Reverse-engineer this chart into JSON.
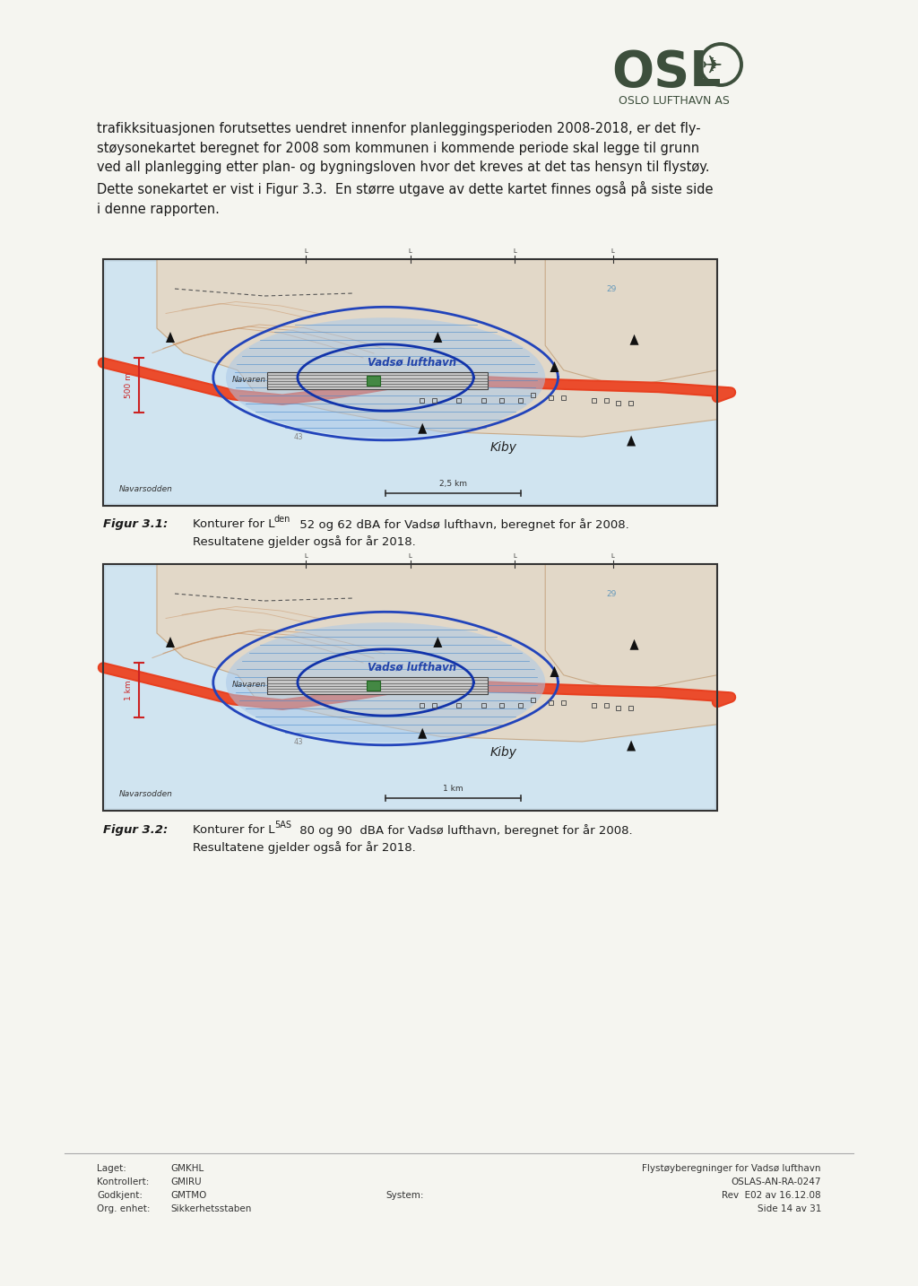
{
  "page_bg": "#f5f5f0",
  "logo_color": "#3d4f3c",
  "main_text_paragraph": "trafikksituasjonen forutsettes uendret innenfor planleggingsperioden 2008-2018, er det fly-\nstøysonekartet beregnet for 2008 som kommunen i kommende periode skal legge til grunn\nved all planlegging etter plan- og bygningsloven hvor det kreves at det tas hensyn til flystøy.\nDette sonekartet er vist i Figur 3.3.  En større utgave av dette kartet finnes også på siste side\ni denne rapporten.",
  "fig1_caption_bold": "Figur 3.1:",
  "fig1_caption_text": "    Konturer for L",
  "fig1_sub": "den",
  "fig1_rest": " 52 og 62 dBA for Vadsø lufthavn, beregnet for år 2008.",
  "fig1_line2": "    Resultatene gjelder også for år 2018.",
  "fig2_caption_bold": "Figur 3.2:",
  "fig2_caption_text": "    Konturer for L",
  "fig2_sub": "5AS",
  "fig2_rest": " 80 og 90  dBA for Vadsø lufthavn, beregnet for år 2008.",
  "fig2_line2": "    Resultatene gjelder også for år 2018.",
  "footer_laget_label": "Laget:",
  "footer_laget_val": "GMKHL",
  "footer_kontrollert_label": "Kontrollert:",
  "footer_kontrollert_val": "GMIRU",
  "footer_godkjent_label": "Godkjent:",
  "footer_godkjent_val": "GMTMO",
  "footer_org_label": "Org. enhet:",
  "footer_org_val": "Sikkerhetsstaben",
  "footer_system": "System:",
  "footer_right1": "Flystøyberegninger for Vadsø lufthavn",
  "footer_right2": "OSLAS-AN-RA-0247",
  "footer_right3": "Rev  E02 av 16.12.08",
  "footer_right4": "Side 14 av 31",
  "text_color": "#1a1a1a",
  "map_border": "#333333",
  "logo_subtext": "OSLO LUFTHAVN AS"
}
